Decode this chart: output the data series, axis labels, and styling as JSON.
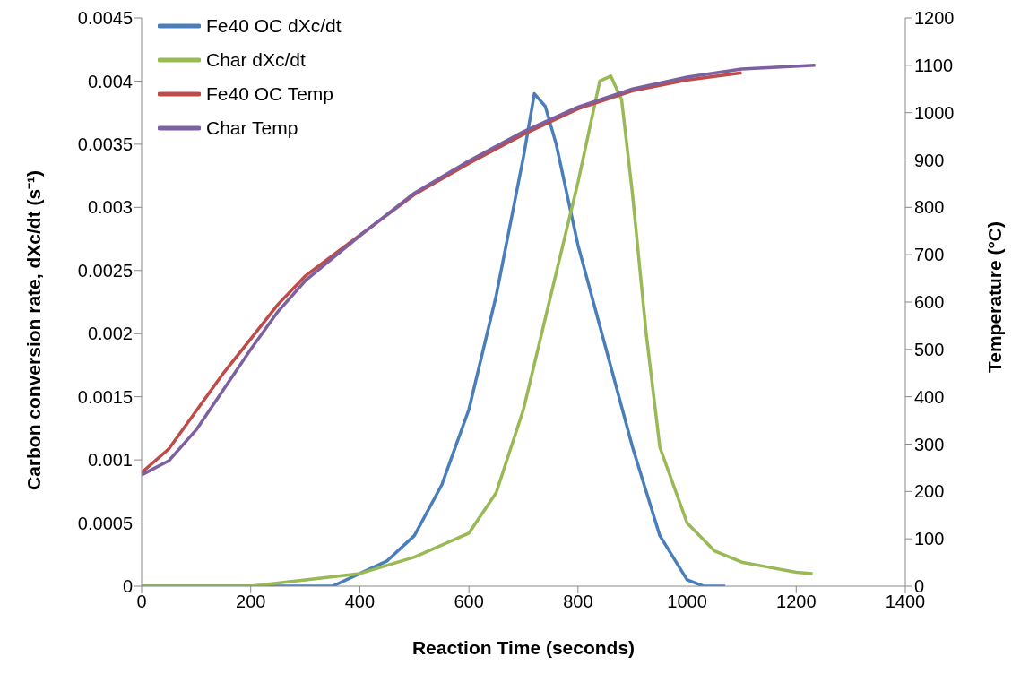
{
  "chart_data": {
    "type": "line",
    "xlabel": "Reaction Time (seconds)",
    "ylabel": "Carbon conversion rate, dXc/dt (s⁻¹)",
    "y2label": "Temperature (°C)",
    "xlim": [
      0,
      1400
    ],
    "xticks": [
      0,
      200,
      400,
      600,
      800,
      1000,
      1200,
      1400
    ],
    "ylim": [
      0,
      0.0045
    ],
    "yticks": [
      0,
      0.0005,
      0.001,
      0.0015,
      0.002,
      0.0025,
      0.003,
      0.0035,
      0.004,
      0.0045
    ],
    "y2lim": [
      0,
      1200
    ],
    "y2ticks": [
      0,
      100,
      200,
      300,
      400,
      500,
      600,
      700,
      800,
      900,
      1000,
      1100,
      1200
    ],
    "grid": false,
    "legend": "top left",
    "marker": "none",
    "line_style": "solid",
    "series": [
      {
        "name": "Fe40 OC dXc/dt",
        "color": "#4a7ebb",
        "x": [
          0,
          100,
          200,
          300,
          350,
          400,
          450,
          500,
          550,
          600,
          650,
          700,
          720,
          740,
          760,
          800,
          850,
          900,
          950,
          1000,
          1030,
          1070
        ],
        "values": [
          0,
          0,
          0,
          0,
          0,
          0.0001,
          0.0002,
          0.0004,
          0.0008,
          0.0014,
          0.0023,
          0.0034,
          0.0039,
          0.0038,
          0.0035,
          0.0027,
          0.0019,
          0.0011,
          0.0004,
          5e-05,
          0,
          0
        ]
      },
      {
        "name": "Char dXc/dt",
        "color": "#98b954",
        "x": [
          0,
          100,
          200,
          300,
          400,
          500,
          600,
          650,
          700,
          750,
          800,
          840,
          860,
          880,
          900,
          925,
          950,
          1000,
          1050,
          1100,
          1150,
          1200,
          1230
        ],
        "values": [
          0,
          0,
          0,
          5e-05,
          0.0001,
          0.00023,
          0.00042,
          0.00074,
          0.0014,
          0.0023,
          0.0032,
          0.004,
          0.00404,
          0.00385,
          0.0031,
          0.002,
          0.0011,
          0.0005,
          0.00028,
          0.00019,
          0.00015,
          0.00011,
          0.0001
        ]
      },
      {
        "name": "Fe40 OC Temp",
        "color": "#be4b48",
        "axis": "y2",
        "x": [
          0,
          50,
          100,
          150,
          200,
          250,
          300,
          400,
          500,
          600,
          700,
          800,
          900,
          1000,
          1100
        ],
        "values": [
          240,
          290,
          370,
          450,
          522,
          595,
          655,
          741,
          827,
          893,
          954,
          1008,
          1046,
          1069,
          1084
        ]
      },
      {
        "name": "Char Temp",
        "color": "#7d60a0",
        "axis": "y2",
        "x": [
          0,
          50,
          100,
          150,
          200,
          250,
          300,
          400,
          500,
          600,
          700,
          800,
          900,
          1000,
          1100,
          1235
        ],
        "values": [
          235,
          265,
          330,
          415,
          500,
          580,
          645,
          740,
          830,
          898,
          960,
          1012,
          1050,
          1075,
          1092,
          1100
        ]
      }
    ]
  }
}
